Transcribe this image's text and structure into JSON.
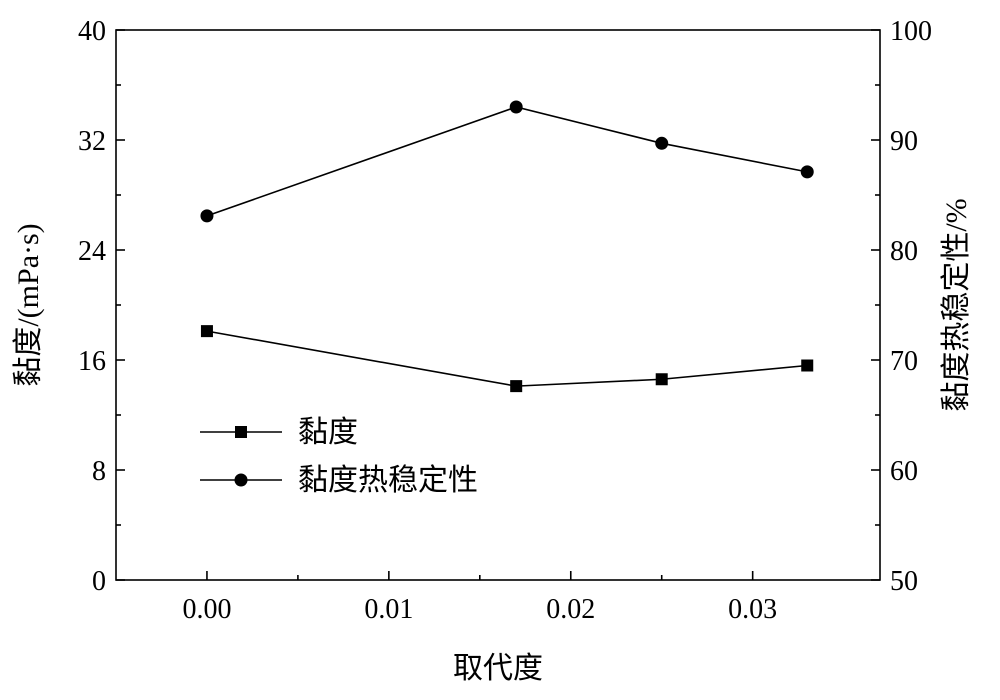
{
  "chart_data": {
    "type": "line",
    "xlabel": "取代度",
    "ylabel_left": "黏度/(mPa·s)",
    "ylabel_right": "黏度热稳定性/%",
    "xlim": [
      -0.005,
      0.037
    ],
    "ylim_left": [
      0,
      40
    ],
    "ylim_right": [
      50,
      100
    ],
    "x_ticks": [
      0.0,
      0.01,
      0.02,
      0.03
    ],
    "x_tick_labels": [
      "0.00",
      "0.01",
      "0.02",
      "0.03"
    ],
    "y_left_ticks": [
      0,
      8,
      16,
      24,
      32,
      40
    ],
    "y_left_tick_labels": [
      "0",
      "8",
      "16",
      "24",
      "32",
      "40"
    ],
    "y_right_ticks": [
      50,
      60,
      70,
      80,
      90,
      100
    ],
    "y_right_tick_labels": [
      "50",
      "60",
      "70",
      "80",
      "90",
      "100"
    ],
    "legend_position": "center-left",
    "grid": false,
    "series": [
      {
        "name": "黏度",
        "marker": "square",
        "axis": "left",
        "x": [
          0.0,
          0.017,
          0.025,
          0.033
        ],
        "y": [
          18.1,
          14.1,
          14.6,
          15.6
        ]
      },
      {
        "name": "黏度热稳定性",
        "marker": "circle",
        "axis": "right",
        "x": [
          0.0,
          0.017,
          0.025,
          0.033
        ],
        "y": [
          83.1,
          93.0,
          89.7,
          87.1
        ]
      }
    ]
  }
}
